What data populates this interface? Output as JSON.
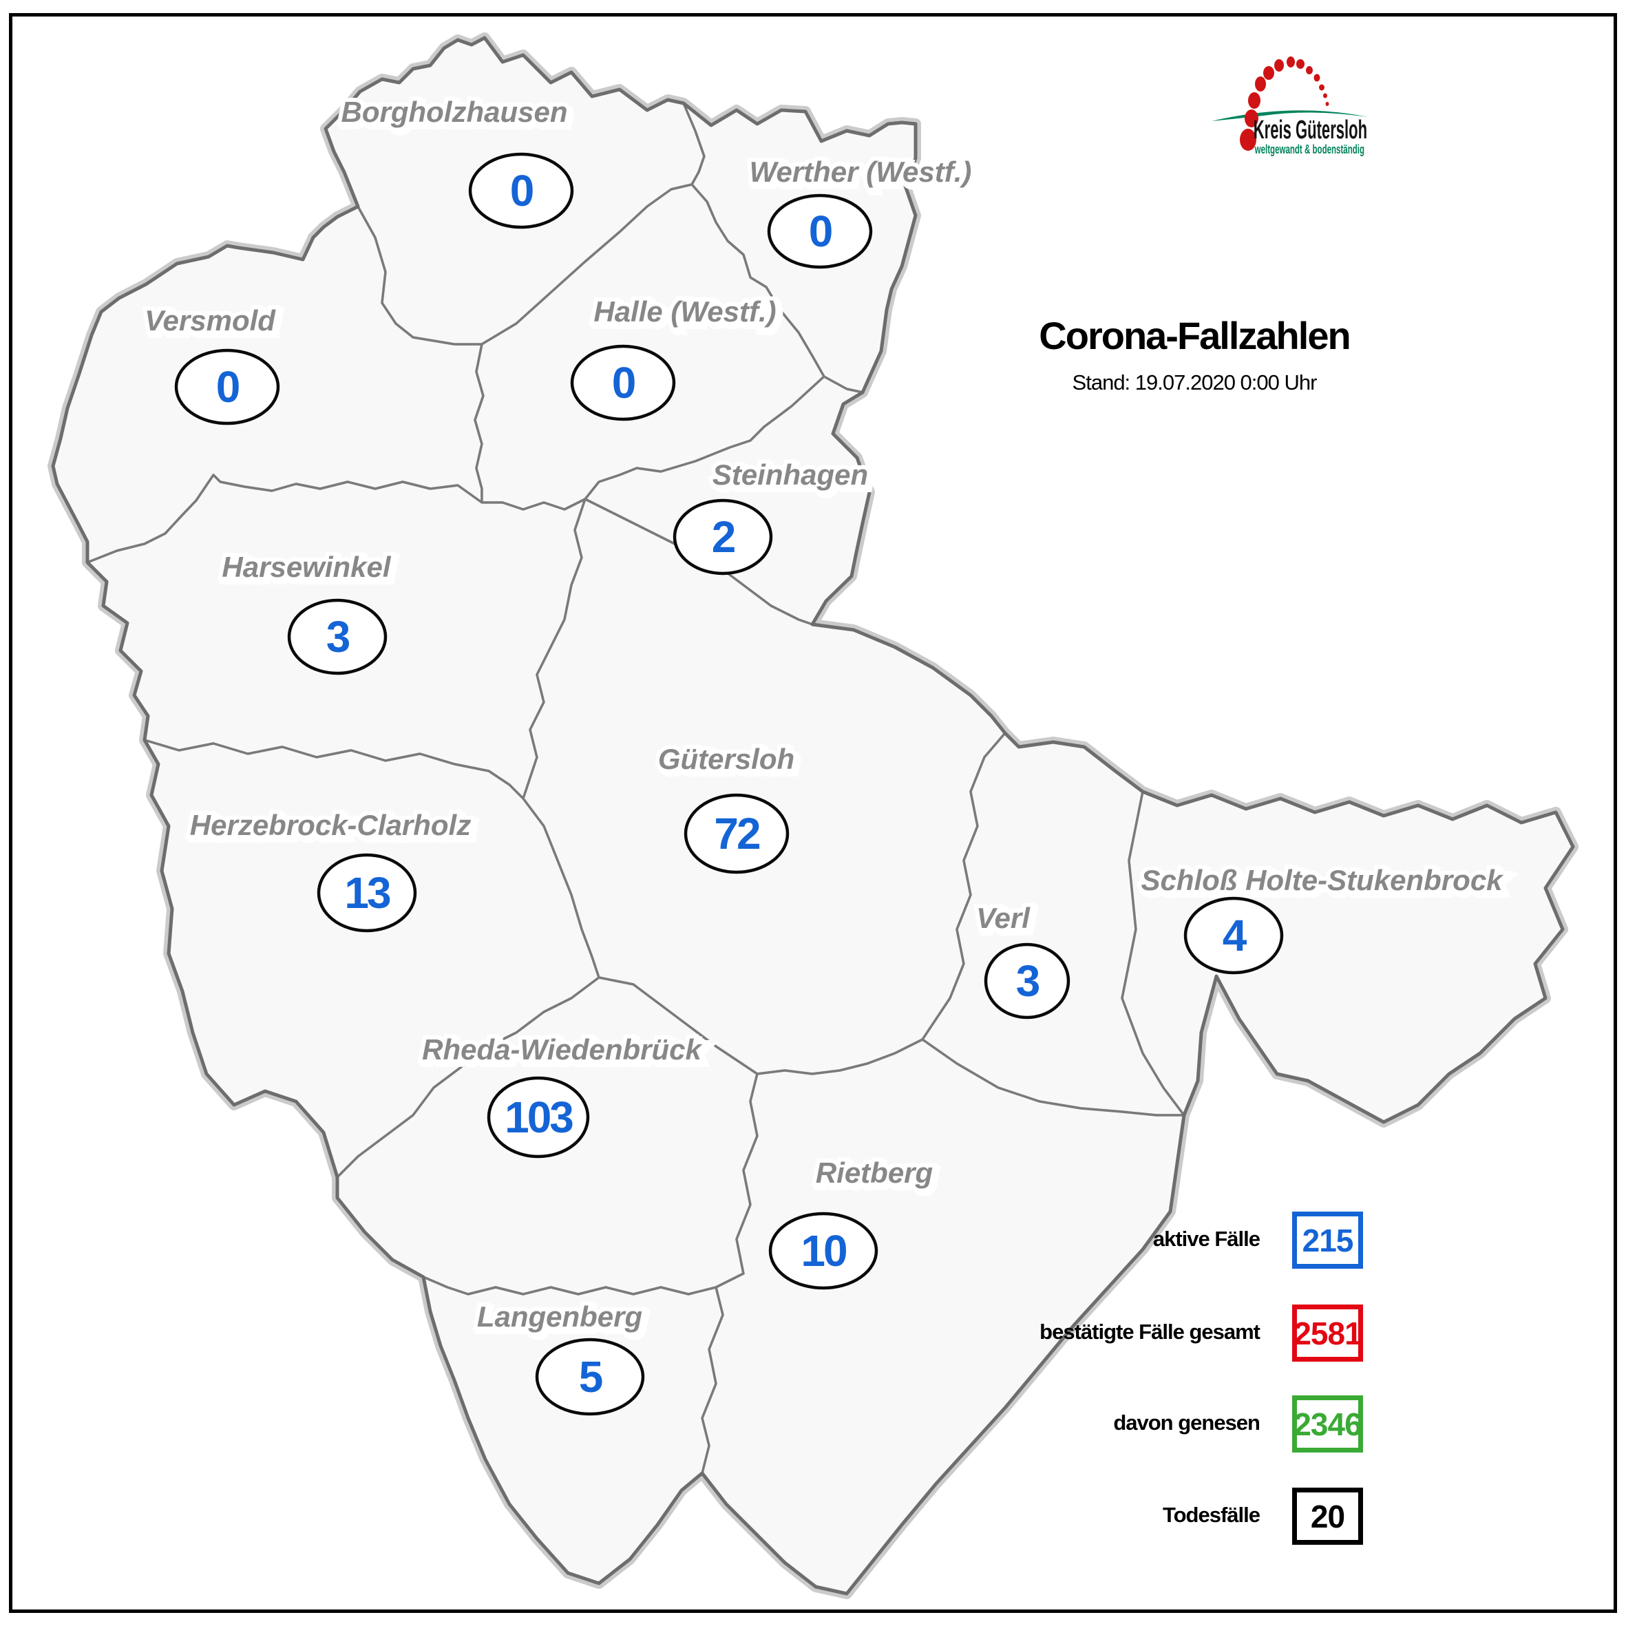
{
  "header": {
    "title": "Corona-Fallzahlen",
    "subtitle": "Stand: 19.07.2020 0:00 Uhr"
  },
  "logo": {
    "title": "Kreis Gütersloh",
    "tagline": "weltgewandt & bodenständig",
    "title_color": "#141414",
    "tagline_color": "#00835d",
    "dot_color": "#cf1315",
    "swoosh_color": "#00835d"
  },
  "map": {
    "case_number_color": "#1464d6",
    "municipalities": [
      {
        "id": "borgholzhausen",
        "name": "Borgholzhausen",
        "cases": "0"
      },
      {
        "id": "werther",
        "name": "Werther (Westf.)",
        "cases": "0"
      },
      {
        "id": "versmold",
        "name": "Versmold",
        "cases": "0"
      },
      {
        "id": "halle",
        "name": "Halle (Westf.)",
        "cases": "0"
      },
      {
        "id": "steinhagen",
        "name": "Steinhagen",
        "cases": "2"
      },
      {
        "id": "harsewinkel",
        "name": "Harsewinkel",
        "cases": "3"
      },
      {
        "id": "guetersloh",
        "name": "Gütersloh",
        "cases": "72"
      },
      {
        "id": "herzebrock",
        "name": "Herzebrock-Clarholz",
        "cases": "13"
      },
      {
        "id": "verl",
        "name": "Verl",
        "cases": "3"
      },
      {
        "id": "shs",
        "name": "Schloß Holte-Stukenbrock",
        "cases": "4"
      },
      {
        "id": "rheda",
        "name": "Rheda-Wiedenbrück",
        "cases": "103"
      },
      {
        "id": "rietberg",
        "name": "Rietberg",
        "cases": "10"
      },
      {
        "id": "langenberg",
        "name": "Langenberg",
        "cases": "5"
      }
    ]
  },
  "legend": {
    "items": [
      {
        "id": "active",
        "label": "aktive Fälle",
        "value": "215",
        "color": "#1464d6"
      },
      {
        "id": "confirmed",
        "label": "bestätigte Fälle gesamt",
        "value": "2581",
        "color": "#e30613"
      },
      {
        "id": "recovered",
        "label": "davon genesen",
        "value": "2346",
        "color": "#3aaa35"
      },
      {
        "id": "deaths",
        "label": "Todesfälle",
        "value": "20",
        "color": "#000000"
      }
    ]
  }
}
